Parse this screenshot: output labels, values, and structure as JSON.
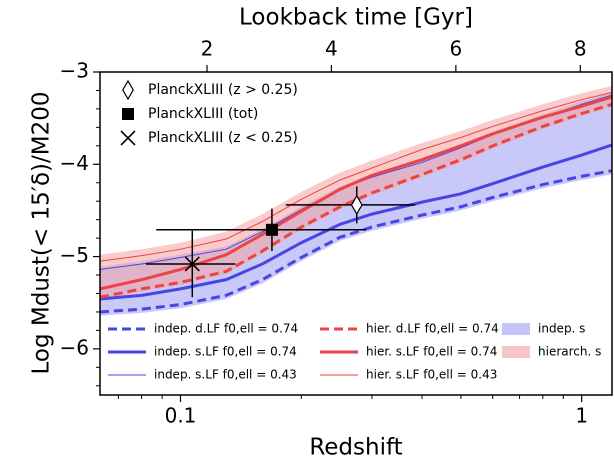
{
  "chart_data": {
    "type": "line",
    "xlabel": "Redshift",
    "x2label": "Lookback time [Gyr]",
    "ylabel": "Log Mdust(< 15′δ)/M200",
    "xscale": "log",
    "xlim": [
      0.063,
      1.19
    ],
    "xticks": [
      0.1,
      1
    ],
    "xminorticks": [
      0.07,
      0.08,
      0.09,
      0.2,
      0.3,
      0.4,
      0.5,
      0.6,
      0.7,
      0.8,
      0.9
    ],
    "x2lim": [
      0.28,
      8.51
    ],
    "x2ticks": [
      2,
      4,
      6,
      8
    ],
    "ylim": [
      -6.5,
      -3
    ],
    "yticks": [
      {
        "value": -6,
        "label": "−6"
      },
      {
        "value": -5,
        "label": "−5"
      },
      {
        "value": -4,
        "label": "−4"
      },
      {
        "value": -3,
        "label": "−3"
      }
    ],
    "yminorticks": [
      -6.4,
      -6.2,
      -5.8,
      -5.6,
      -5.4,
      -5.2,
      -4.8,
      -4.6,
      -4.4,
      -4.2,
      -3.8,
      -3.6,
      -3.4,
      -3.2
    ],
    "x": [
      0.063,
      0.08,
      0.1,
      0.13,
      0.16,
      0.2,
      0.25,
      0.3,
      0.4,
      0.5,
      0.6,
      0.8,
      1.0,
      1.19
    ],
    "bands": [
      {
        "name": "indep. s",
        "color": "#9c9cf4",
        "lower": [
          -5.64,
          -5.61,
          -5.56,
          -5.46,
          -5.29,
          -5.05,
          -4.83,
          -4.72,
          -4.59,
          -4.5,
          -4.4,
          -4.26,
          -4.17,
          -4.11
        ],
        "upper": [
          -5.11,
          -5.05,
          -4.98,
          -4.89,
          -4.7,
          -4.46,
          -4.24,
          -4.11,
          -3.95,
          -3.79,
          -3.65,
          -3.46,
          -3.32,
          -3.22
        ]
      },
      {
        "name": "hierarch. s",
        "color": "#f4a0a0",
        "lower": [
          -5.47,
          -5.38,
          -5.31,
          -5.19,
          -4.97,
          -4.71,
          -4.49,
          -4.34,
          -4.14,
          -3.98,
          -3.83,
          -3.62,
          -3.48,
          -3.38
        ],
        "upper": [
          -4.98,
          -4.92,
          -4.85,
          -4.73,
          -4.54,
          -4.3,
          -4.09,
          -3.96,
          -3.77,
          -3.64,
          -3.52,
          -3.35,
          -3.23,
          -3.15
        ]
      }
    ],
    "series": [
      {
        "name": "indep. d.LF  f0,ell = 0.74",
        "color": "#4646e6",
        "style": "dashed",
        "width": "thick",
        "values": [
          -5.6,
          -5.57,
          -5.52,
          -5.42,
          -5.25,
          -5.01,
          -4.79,
          -4.68,
          -4.55,
          -4.46,
          -4.36,
          -4.22,
          -4.13,
          -4.07
        ]
      },
      {
        "name": "indep. s.LF  f0,ell = 0.74",
        "color": "#4646e6",
        "style": "solid",
        "width": "thick",
        "values": [
          -5.46,
          -5.42,
          -5.35,
          -5.25,
          -5.08,
          -4.85,
          -4.65,
          -4.54,
          -4.41,
          -4.32,
          -4.21,
          -4.03,
          -3.9,
          -3.79
        ]
      },
      {
        "name": "indep. s.LF  f0,ell = 0.43",
        "color": "#4646e6",
        "style": "solid",
        "width": "thin",
        "values": [
          -5.14,
          -5.08,
          -5.01,
          -4.92,
          -4.73,
          -4.49,
          -4.27,
          -4.14,
          -3.98,
          -3.82,
          -3.68,
          -3.49,
          -3.35,
          -3.25
        ]
      },
      {
        "name": "hier. d.LF  f0,ell = 0.74",
        "color": "#ec4444",
        "style": "dashed",
        "width": "thick",
        "values": [
          -5.44,
          -5.35,
          -5.28,
          -5.16,
          -4.94,
          -4.68,
          -4.46,
          -4.31,
          -4.11,
          -3.95,
          -3.8,
          -3.59,
          -3.45,
          -3.35
        ]
      },
      {
        "name": "hier. s.LF  f0,ell = 0.74",
        "color": "#ec4444",
        "style": "solid",
        "width": "thick",
        "values": [
          -5.35,
          -5.25,
          -5.14,
          -4.98,
          -4.76,
          -4.51,
          -4.27,
          -4.12,
          -3.95,
          -3.8,
          -3.67,
          -3.49,
          -3.37,
          -3.27
        ]
      },
      {
        "name": "hier. s.LF  f0,ell = 0.43",
        "color": "#ec4444",
        "style": "solid",
        "width": "thin",
        "values": [
          -5.05,
          -4.99,
          -4.92,
          -4.81,
          -4.62,
          -4.38,
          -4.17,
          -4.04,
          -3.84,
          -3.71,
          -3.59,
          -3.42,
          -3.3,
          -3.22
        ]
      }
    ],
    "points": [
      {
        "name": "PlanckXLIII (z > 0.25)",
        "marker": "diamond",
        "x": 0.275,
        "xmin": 0.183,
        "xmax": 0.385,
        "y": -4.44,
        "yerr": 0.2
      },
      {
        "name": "PlanckXLIII (tot)",
        "marker": "square",
        "x": 0.169,
        "xmin": 0.087,
        "xmax": 0.29,
        "y": -4.71,
        "yerr": 0.23
      },
      {
        "name": "PlanckXLIII (z < 0.25)",
        "marker": "cross",
        "x": 0.107,
        "xmin": 0.082,
        "xmax": 0.137,
        "y": -5.08,
        "yerr": 0.36
      }
    ]
  }
}
